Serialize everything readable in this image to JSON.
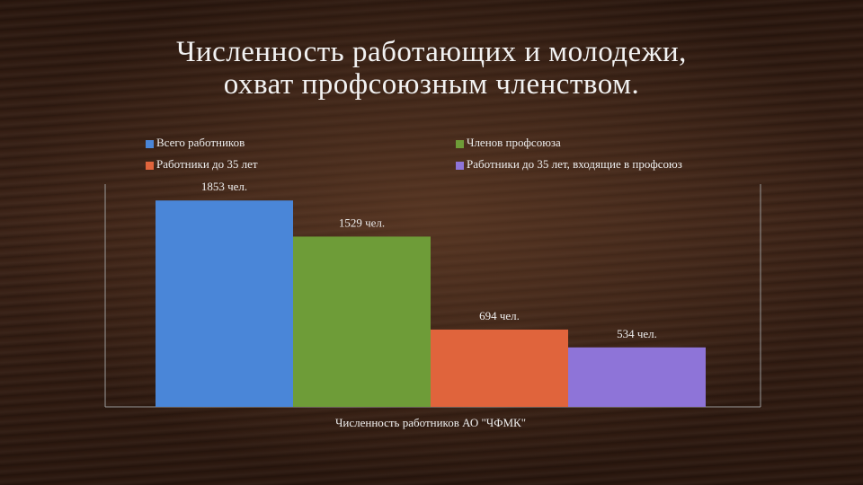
{
  "chart_data": {
    "type": "bar",
    "title": "Численность работающих и молодежи,\nохват профсоюзным членством.",
    "categories": [
      "Численность работников АО \"ЧФМК\""
    ],
    "series": [
      {
        "name": "Всего работников",
        "color": "#4a86d8",
        "values": [
          1853
        ],
        "value_labels": [
          "1853 чел."
        ]
      },
      {
        "name": "Членов профсоюза",
        "color": "#6e9c38",
        "values": [
          1529
        ],
        "value_labels": [
          "1529 чел."
        ]
      },
      {
        "name": "Работники до 35 лет",
        "color": "#e0643c",
        "values": [
          694
        ],
        "value_labels": [
          "694 чел."
        ]
      },
      {
        "name": "Работники до 35 лет, входящие в профсоюз",
        "color": "#8e74d8",
        "values": [
          534
        ],
        "value_labels": [
          "534 чел."
        ]
      }
    ],
    "ylim": [
      0,
      2000
    ]
  }
}
